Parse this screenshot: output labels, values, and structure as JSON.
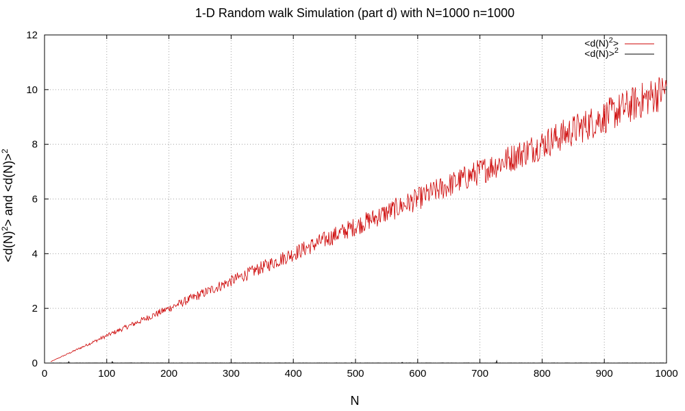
{
  "chart_data": {
    "type": "line",
    "title": "1-D Random walk Simulation (part d) with N=1000 n=1000",
    "xlabel": "N",
    "ylabel": {
      "p1": "<d(N)",
      "s1": "2",
      "p2": "> and <d(N)>",
      "s2": "2"
    },
    "xlim": [
      0,
      1000
    ],
    "ylim": [
      0,
      12
    ],
    "xticks": [
      0,
      100,
      200,
      300,
      400,
      500,
      600,
      700,
      800,
      900,
      1000
    ],
    "yticks": [
      0,
      2,
      4,
      6,
      8,
      10,
      12
    ],
    "grid": true,
    "legend_position": "top-right",
    "x_start": 10,
    "x_end": 1000,
    "series": [
      {
        "name": {
          "base": "<d(N)",
          "sup": "2",
          "tail": ">"
        },
        "color": "#cc0000",
        "trend": "linear",
        "trend_points": [
          [
            10,
            0.05
          ],
          [
            100,
            1.0
          ],
          [
            200,
            2.0
          ],
          [
            300,
            3.0
          ],
          [
            400,
            4.0
          ],
          [
            500,
            5.0
          ],
          [
            600,
            6.0
          ],
          [
            700,
            7.0
          ],
          [
            800,
            8.0
          ],
          [
            900,
            9.0
          ],
          [
            1000,
            10.0
          ]
        ],
        "noise_relative": 0.05
      },
      {
        "name": {
          "base": "<d(N)>",
          "sup": "2",
          "tail": ""
        },
        "color": "#000000",
        "trend": "flat",
        "trend_points": [
          [
            10,
            0.0
          ],
          [
            1000,
            0.0
          ]
        ],
        "noise_relative": 0.01
      }
    ]
  }
}
